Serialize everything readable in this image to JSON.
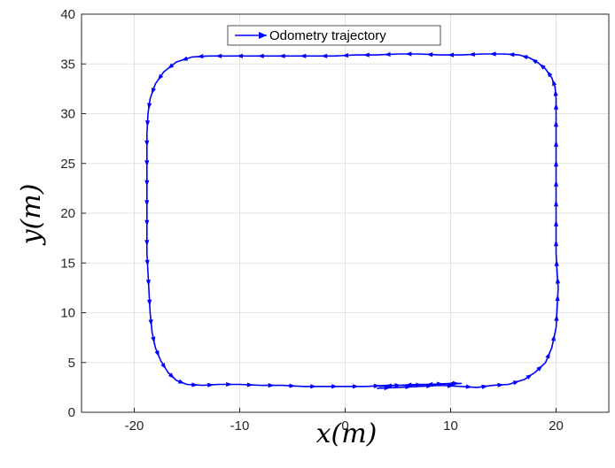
{
  "chart_data": {
    "type": "line",
    "xlabel": "x(m)",
    "ylabel": "y(m)",
    "xlim": [
      -25,
      25
    ],
    "ylim": [
      0,
      40
    ],
    "xticks": [
      -20,
      -10,
      0,
      10,
      20
    ],
    "yticks": [
      0,
      5,
      10,
      15,
      20,
      25,
      30,
      35,
      40
    ],
    "xtick_labels": [
      "-20",
      "-10",
      "0",
      "10",
      "20"
    ],
    "ytick_labels": [
      "0",
      "5",
      "10",
      "15",
      "20",
      "25",
      "30",
      "35",
      "40"
    ],
    "grid": true,
    "legend": {
      "position": "top-center",
      "entries": [
        "Odometry trajectory"
      ]
    },
    "series": [
      {
        "name": "Odometry trajectory",
        "color": "#0000ff",
        "marker": "arrow",
        "x": [
          3.0,
          5.0,
          7.0,
          9.0,
          11.0,
          12.5,
          14.0,
          15.5,
          17.0,
          18.0,
          19.0,
          19.6,
          20.0,
          20.1,
          20.2,
          20.1,
          20.0,
          20.0,
          20.0,
          20.0,
          20.0,
          20.0,
          20.0,
          20.0,
          20.0,
          19.9,
          19.6,
          19.0,
          18.3,
          17.5,
          16.5,
          15.0,
          13.0,
          11.0,
          9.0,
          7.0,
          5.0,
          3.0,
          1.0,
          -1.0,
          -3.0,
          -5.0,
          -7.0,
          -9.0,
          -11.0,
          -13.0,
          -14.5,
          -16.0,
          -17.2,
          -18.0,
          -18.5,
          -18.7,
          -18.8,
          -18.8,
          -18.8,
          -18.8,
          -18.8,
          -18.8,
          -18.8,
          -18.7,
          -18.6,
          -18.5,
          -18.3,
          -18.0,
          -17.5,
          -16.8,
          -16.0,
          -15.0,
          -13.5,
          -12.0,
          -10.0,
          -8.0,
          -6.0,
          -4.0,
          -2.0,
          0.0,
          2.0,
          4.0,
          6.0,
          8.0,
          10.0,
          11.0,
          9.0,
          7.0,
          5.0,
          3.2
        ],
        "y": [
          2.4,
          2.5,
          2.6,
          2.7,
          2.6,
          2.5,
          2.7,
          2.8,
          3.3,
          4.0,
          5.0,
          6.5,
          8.5,
          10.5,
          12.5,
          14.0,
          16.0,
          18.0,
          20.0,
          22.0,
          24.0,
          26.0,
          28.0,
          30.0,
          31.5,
          32.7,
          33.6,
          34.5,
          35.1,
          35.6,
          35.9,
          36.0,
          36.0,
          35.9,
          35.9,
          36.0,
          36.0,
          35.9,
          35.9,
          35.8,
          35.8,
          35.8,
          35.8,
          35.8,
          35.8,
          35.8,
          35.7,
          35.2,
          34.2,
          33.0,
          31.5,
          30.0,
          28.0,
          26.0,
          24.0,
          22.0,
          20.0,
          18.0,
          16.0,
          14.0,
          12.0,
          10.0,
          8.0,
          6.5,
          5.2,
          4.0,
          3.2,
          2.8,
          2.7,
          2.8,
          2.8,
          2.7,
          2.7,
          2.6,
          2.6,
          2.6,
          2.6,
          2.7,
          2.7,
          2.8,
          2.9,
          2.9,
          2.8,
          2.8,
          2.7,
          2.6
        ]
      }
    ]
  }
}
